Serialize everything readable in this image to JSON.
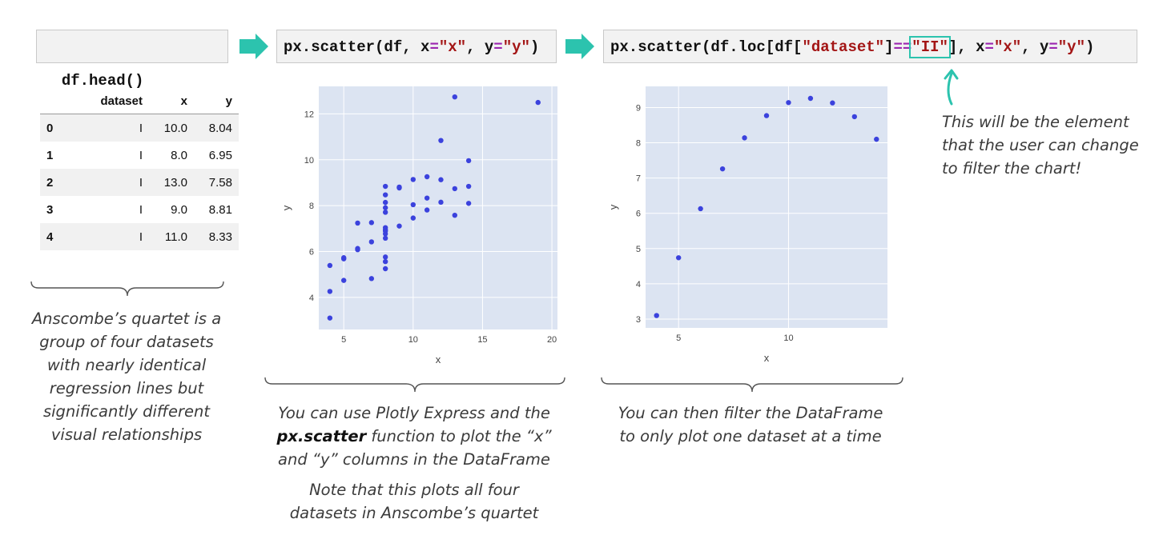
{
  "code": {
    "head": "df.head()",
    "scatter_all": {
      "fn": "px.scatter(df, ",
      "xk": "x",
      "eq1": "=",
      "xv": "\"x\"",
      "sep": ", ",
      "yk": "y",
      "eq2": "=",
      "yv": "\"y\"",
      "close": ")"
    },
    "scatter_filtered": {
      "p1": "px.scatter(df.loc[df[",
      "s1": "\"dataset\"",
      "p2": "]",
      "op": "==",
      "s2": "\"II\"",
      "p3": "], ",
      "xk": "x",
      "eq1": "=",
      "xv": "\"x\"",
      "sep": ", ",
      "yk": "y",
      "eq2": "=",
      "yv": "\"y\"",
      "close": ")"
    }
  },
  "table": {
    "columns": [
      "",
      "dataset",
      "x",
      "y"
    ],
    "rows": [
      [
        "0",
        "I",
        "10.0",
        "8.04"
      ],
      [
        "1",
        "I",
        "8.0",
        "6.95"
      ],
      [
        "2",
        "I",
        "13.0",
        "7.58"
      ],
      [
        "3",
        "I",
        "9.0",
        "8.81"
      ],
      [
        "4",
        "I",
        "11.0",
        "8.33"
      ]
    ]
  },
  "captions": {
    "left": [
      "Anscombe’s quartet is a",
      "group of four datasets",
      "with nearly identical",
      "regression lines but",
      "significantly different",
      "visual relationships"
    ],
    "middle_1": "You can use Plotly Express and the",
    "middle_bold": "px.scatter",
    "middle_2": " function to plot the “x”",
    "middle_3": "and “y” columns in the DataFrame",
    "middle_note": [
      "Note that this plots all four",
      "datasets in Anscombe’s quartet"
    ],
    "right": [
      "You can then filter the DataFrame",
      "to only plot one dataset at a time"
    ],
    "annotation": [
      "This will be the element",
      "that the user can change",
      "to filter the chart!"
    ]
  },
  "colors": {
    "plot_bg": "#dce4f2",
    "marker": "#3b42dd",
    "accent": "#2cc3ae",
    "string": "#a31515",
    "operator": "#9b27b0"
  },
  "chart_data": [
    {
      "type": "scatter",
      "title": "",
      "xlabel": "x",
      "ylabel": "y",
      "xlim": [
        3.2,
        20.4
      ],
      "ylim": [
        2.6,
        13.2
      ],
      "xticks": [
        5,
        10,
        15,
        20
      ],
      "yticks": [
        4,
        6,
        8,
        10,
        12
      ],
      "grid": true,
      "x": [
        10,
        8,
        13,
        9,
        11,
        14,
        6,
        4,
        12,
        7,
        5,
        10,
        8,
        13,
        9,
        11,
        14,
        6,
        4,
        12,
        7,
        5,
        10,
        8,
        13,
        9,
        11,
        14,
        6,
        4,
        12,
        7,
        5,
        8,
        8,
        8,
        8,
        8,
        8,
        8,
        19,
        8,
        8,
        8
      ],
      "y": [
        8.04,
        6.95,
        7.58,
        8.81,
        8.33,
        9.96,
        7.24,
        4.26,
        10.84,
        4.82,
        5.68,
        9.14,
        8.14,
        8.74,
        8.77,
        9.26,
        8.1,
        6.13,
        3.1,
        9.13,
        7.26,
        4.74,
        7.46,
        6.77,
        12.74,
        7.11,
        7.81,
        8.84,
        6.08,
        5.39,
        8.15,
        6.42,
        5.73,
        6.58,
        5.76,
        7.71,
        8.84,
        8.47,
        7.04,
        5.25,
        12.5,
        5.56,
        7.91,
        6.89
      ]
    },
    {
      "type": "scatter",
      "title": "",
      "xlabel": "x",
      "ylabel": "y",
      "xlim": [
        3.5,
        14.5
      ],
      "ylim": [
        2.75,
        9.6
      ],
      "xticks": [
        5,
        10
      ],
      "yticks": [
        3,
        4,
        5,
        6,
        7,
        8,
        9
      ],
      "grid": true,
      "x": [
        4,
        5,
        6,
        7,
        8,
        9,
        10,
        11,
        12,
        13,
        14
      ],
      "y": [
        3.1,
        4.74,
        6.13,
        7.26,
        8.14,
        8.77,
        9.14,
        9.26,
        9.13,
        8.74,
        8.1
      ]
    }
  ]
}
